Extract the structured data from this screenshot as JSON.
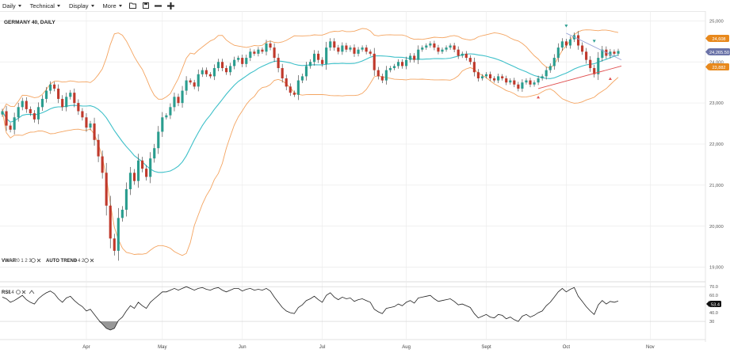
{
  "toolbar": {
    "menus": [
      "Daily",
      "Technical",
      "Display",
      "More"
    ],
    "icons": [
      "folder-open-icon",
      "save-icon",
      "zoom-out-icon",
      "zoom-in-icon"
    ]
  },
  "main_pane": {
    "title": "GERMANY 40, DAILY",
    "indicator_labels": [
      {
        "name": "VWAP",
        "params": "20 1 2 3"
      },
      {
        "name": "AUTO TREND",
        "params": "3 4 2"
      }
    ]
  },
  "rsi_pane": {
    "label": "RSI",
    "period": "14"
  },
  "colors": {
    "up": "#2a9d8f",
    "down": "#c0392b",
    "band": "#f4a460",
    "mid": "#3ec0c9",
    "trend_up": "#e05050",
    "trend_down": "#9aa6d8",
    "badge_high": "#e8891d",
    "badge_current": "#6b73a8",
    "badge_low": "#e8891d"
  },
  "badges": {
    "high": "24,608",
    "current": "24,265.50",
    "low": "23,882",
    "rsi": "53.4"
  },
  "chart_data": [
    {
      "type": "candlestick",
      "title": "GERMANY 40, DAILY",
      "x_ticks": [
        "Apr",
        "May",
        "Jun",
        "Jul",
        "Aug",
        "Sept",
        "Oct",
        "Nov"
      ],
      "y_ticks": [
        "25,000",
        "24,000",
        "23,000",
        "22,000",
        "21,000",
        "20,000",
        "19,000"
      ],
      "ylim": [
        18800,
        25200
      ],
      "y_tick_values": [
        25000,
        24000,
        23000,
        22000,
        21000,
        20000,
        19000
      ],
      "month_start_index": [
        21,
        40,
        60,
        80,
        101,
        121,
        141,
        162
      ],
      "closes": [
        22800,
        22450,
        22350,
        22650,
        22900,
        23050,
        22850,
        22750,
        22600,
        22900,
        23100,
        23300,
        23450,
        23350,
        23100,
        22900,
        23150,
        23250,
        23000,
        22800,
        22650,
        22400,
        22500,
        22100,
        21700,
        21300,
        20500,
        19700,
        19400,
        20200,
        20400,
        20900,
        21300,
        21100,
        21600,
        21400,
        21200,
        21650,
        21900,
        22300,
        22650,
        22700,
        22900,
        23150,
        23000,
        23300,
        23550,
        23500,
        23400,
        23700,
        23800,
        23700,
        23650,
        23850,
        24000,
        23850,
        23750,
        23900,
        24050,
        24100,
        23950,
        24100,
        24250,
        24200,
        24300,
        24250,
        24450,
        24350,
        24100,
        23850,
        23600,
        23400,
        23250,
        23200,
        23550,
        23650,
        23900,
        24000,
        24200,
        24050,
        23950,
        24350,
        24500,
        24350,
        24250,
        24400,
        24300,
        24350,
        24200,
        24300,
        24350,
        24250,
        24200,
        23800,
        23650,
        23550,
        23800,
        23850,
        23900,
        24000,
        23900,
        24050,
        24150,
        24050,
        24300,
        24350,
        24400,
        24450,
        24350,
        24250,
        24300,
        24350,
        24400,
        24300,
        24150,
        24200,
        24100,
        24000,
        23750,
        23600,
        23650,
        23700,
        23600,
        23550,
        23650,
        23600,
        23500,
        23550,
        23450,
        23350,
        23500,
        23550,
        23450,
        23500,
        23600,
        23650,
        23800,
        23900,
        24100,
        24350,
        24500,
        24400,
        24550,
        24650,
        24400,
        24250,
        24050,
        23850,
        23700,
        24100,
        24300,
        24150,
        24250,
        24200,
        24265
      ]
    },
    {
      "type": "line",
      "series": [
        {
          "name": "RSI",
          "values": [
            58,
            56,
            52,
            54,
            57,
            60,
            55,
            52,
            50,
            56,
            60,
            63,
            65,
            62,
            56,
            52,
            57,
            59,
            54,
            50,
            47,
            42,
            44,
            38,
            32,
            27,
            22,
            20,
            22,
            31,
            35,
            42,
            48,
            45,
            52,
            48,
            45,
            52,
            56,
            60,
            64,
            64,
            66,
            68,
            66,
            68,
            70,
            68,
            66,
            68,
            69,
            67,
            66,
            68,
            69,
            66,
            64,
            66,
            68,
            68,
            65,
            67,
            68,
            66,
            67,
            66,
            68,
            65,
            58,
            52,
            46,
            42,
            40,
            39,
            46,
            49,
            54,
            56,
            59,
            55,
            52,
            60,
            63,
            58,
            55,
            58,
            56,
            57,
            53,
            55,
            56,
            54,
            52,
            44,
            41,
            39,
            45,
            46,
            47,
            50,
            48,
            52,
            54,
            51,
            57,
            58,
            59,
            60,
            56,
            53,
            54,
            55,
            56,
            53,
            49,
            50,
            48,
            46,
            39,
            34,
            36,
            38,
            35,
            34,
            38,
            37,
            33,
            35,
            32,
            30,
            36,
            38,
            35,
            37,
            40,
            42,
            48,
            52,
            58,
            64,
            68,
            64,
            67,
            69,
            59,
            53,
            47,
            42,
            38,
            49,
            54,
            50,
            53,
            52,
            53.4
          ]
        }
      ],
      "y_ticks": [
        "70.0",
        "60.0",
        "50.0",
        "40.0",
        "30"
      ],
      "y_tick_values": [
        70,
        60,
        50,
        40,
        30
      ],
      "ylim": [
        10,
        72
      ]
    }
  ]
}
